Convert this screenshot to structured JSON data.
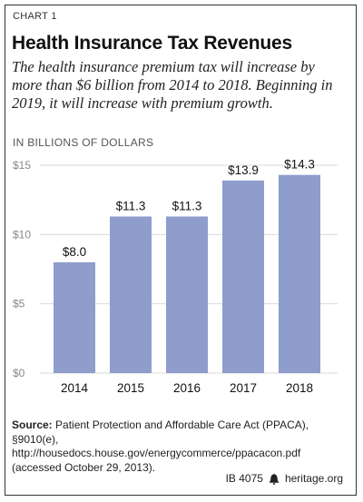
{
  "header": {
    "chart_label": "CHART 1",
    "title": "Health Insurance Tax Revenues",
    "subtitle": "The health insurance premium tax will increase by more than $6 billion from 2014 to 2018. Beginning in 2019, it will increase with premium growth.",
    "units": "IN BILLIONS OF DOLLARS"
  },
  "chart_data": {
    "type": "bar",
    "categories": [
      "2014",
      "2015",
      "2016",
      "2017",
      "2018"
    ],
    "values": [
      8.0,
      11.3,
      11.3,
      13.9,
      14.3
    ],
    "data_labels": [
      "$8.0",
      "$11.3",
      "$11.3",
      "$13.9",
      "$14.3"
    ],
    "title": "Health Insurance Tax Revenues",
    "ylabel": "IN BILLIONS OF DOLLARS",
    "ylim": [
      0,
      15
    ],
    "yticks": [
      0,
      5,
      10,
      15
    ],
    "ytick_labels": [
      "$0",
      "$5",
      "$10",
      "$15"
    ],
    "grid": true,
    "bar_color": "#8E9DCB",
    "grid_color": "#D9D9D9"
  },
  "source": {
    "label": "Source:",
    "text": "Patient Protection and Affordable Care Act (PPACA), §9010(e), http://housedocs.house.gov/energycommerce/ppacacon.pdf (accessed October 29, 2013)."
  },
  "footer": {
    "id": "IB 4075",
    "site": "heritage.org"
  }
}
